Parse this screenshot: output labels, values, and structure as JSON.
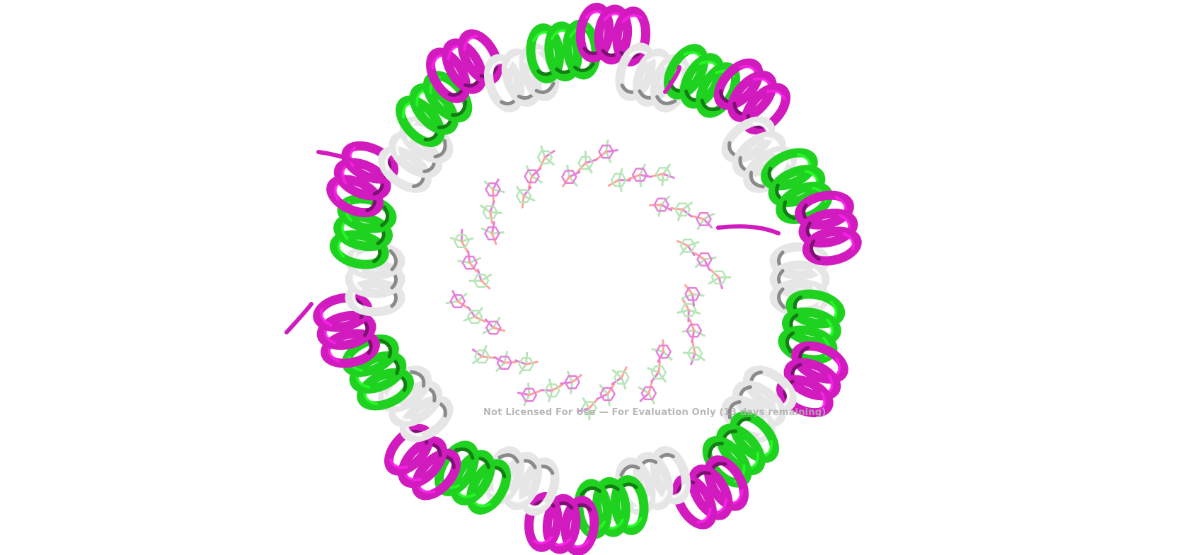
{
  "scene": {
    "type": "molecular-cartoon-render",
    "subject": "ring-shaped helical protein assembly",
    "chain_colors": {
      "green": "#1fd21f",
      "magenta": "#d11bbf",
      "white": "#e6e6e6"
    },
    "atom_colors": {
      "carbon": "#7fd07f",
      "oxygen": "#ff5a4a",
      "nitrogen": "#2a3cff",
      "sulfur": "#e8d23a"
    },
    "background": "#ffffff",
    "ring": {
      "helix_segments": 30
    }
  },
  "watermark": {
    "text": "Not Licensed For Use — For Evaluation Only (13 days remaining)"
  }
}
